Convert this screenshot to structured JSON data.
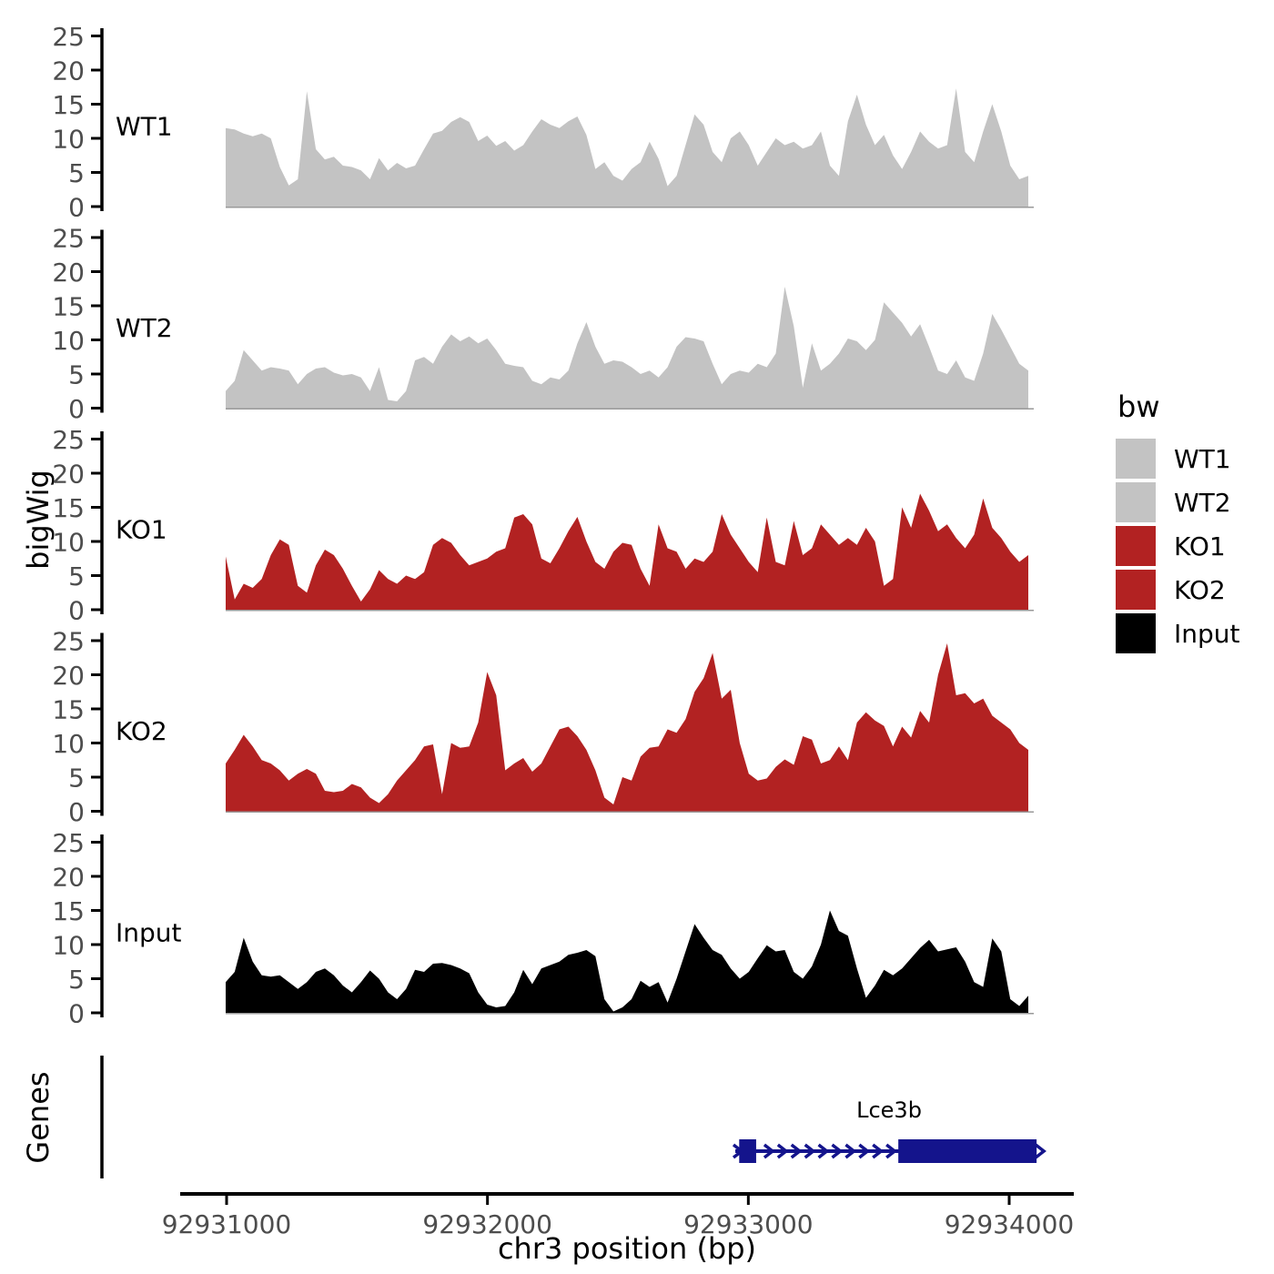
{
  "labels": {
    "y_axis": "bigWig",
    "genes_axis": "Genes",
    "x_axis": "chr3 position (bp)"
  },
  "legend": {
    "title": "bw",
    "items": [
      {
        "label": "WT1",
        "color": "#c3c3c3"
      },
      {
        "label": "WT2",
        "color": "#c3c3c3"
      },
      {
        "label": "KO1",
        "color": "#b22222"
      },
      {
        "label": "KO2",
        "color": "#b22222"
      },
      {
        "label": "Input",
        "color": "#000000"
      }
    ]
  },
  "colors": {
    "axis": "#000000",
    "tick_text": "#4d4d4d",
    "panel_baseline": "#999999",
    "gene": "#14148c"
  },
  "chart_data": {
    "type": "area",
    "title": "",
    "xlabel": "chr3 position (bp)",
    "ylabel": "bigWig",
    "legend_title": "bw",
    "legend_position": "right",
    "grid": false,
    "x_start": 92931000,
    "x_end": 92934070,
    "x_ticks": [
      92931000,
      92932000,
      92933000,
      92934000
    ],
    "x_tick_labels": [
      "92931000",
      "92932000",
      "92933000",
      "92934000"
    ],
    "ylim": [
      0,
      25
    ],
    "y_ticks": [
      0,
      5,
      10,
      15,
      20,
      25
    ],
    "panels": [
      {
        "name": "WT1",
        "color": "#c3c3c3",
        "values": [
          11.5,
          11.3,
          10.7,
          10.3,
          10.7,
          10.0,
          5.8,
          3.1,
          4.0,
          16.9,
          8.4,
          6.9,
          7.3,
          6.0,
          5.8,
          5.3,
          4.0,
          7.1,
          5.3,
          6.4,
          5.6,
          6.0,
          8.4,
          10.7,
          11.1,
          12.4,
          13.1,
          12.4,
          9.6,
          10.4,
          8.9,
          9.6,
          8.2,
          9.0,
          11.0,
          12.8,
          12.0,
          11.5,
          12.5,
          13.2,
          10.5,
          5.5,
          6.5,
          4.5,
          3.8,
          5.5,
          6.5,
          9.5,
          7.0,
          3.0,
          4.5,
          9.0,
          13.5,
          12.0,
          8.0,
          6.5,
          10.0,
          11.0,
          9.0,
          6.0,
          8.0,
          10.0,
          9.0,
          9.5,
          8.5,
          9.0,
          11.0,
          6.0,
          4.5,
          12.5,
          16.4,
          12.0,
          9.0,
          10.5,
          7.5,
          5.5,
          8.0,
          11.0,
          9.5,
          8.5,
          9.0,
          17.3,
          8.0,
          6.5,
          11.0,
          15.0,
          11.0,
          6.0,
          4.0,
          4.5
        ]
      },
      {
        "name": "WT2",
        "color": "#c3c3c3",
        "values": [
          2.5,
          4.0,
          8.5,
          7.0,
          5.5,
          6.0,
          5.8,
          5.5,
          3.5,
          5.0,
          5.8,
          6.0,
          5.2,
          4.8,
          5.0,
          4.5,
          2.5,
          6.0,
          1.2,
          1.0,
          2.5,
          7.0,
          7.5,
          6.5,
          9.0,
          10.8,
          9.8,
          10.5,
          9.5,
          10.2,
          8.5,
          6.5,
          6.2,
          6.0,
          4.0,
          3.5,
          4.5,
          4.2,
          5.5,
          9.5,
          12.6,
          9.0,
          6.5,
          7.0,
          6.8,
          6.0,
          5.0,
          5.5,
          4.5,
          6.0,
          9.0,
          10.4,
          10.2,
          9.8,
          6.5,
          3.5,
          5.0,
          5.5,
          5.2,
          6.5,
          6.0,
          8.0,
          17.8,
          12.0,
          3.0,
          9.5,
          5.5,
          6.5,
          8.0,
          10.2,
          9.8,
          8.5,
          10.0,
          15.5,
          14.0,
          12.5,
          10.5,
          12.3,
          9.0,
          5.5,
          5.0,
          7.0,
          4.5,
          4.0,
          8.0,
          13.8,
          11.5,
          9.0,
          6.5,
          5.5
        ]
      },
      {
        "name": "KO1",
        "color": "#b22222",
        "values": [
          7.8,
          1.5,
          3.8,
          3.2,
          4.5,
          8.0,
          10.3,
          9.5,
          3.5,
          2.5,
          6.5,
          8.8,
          8.0,
          6.0,
          3.5,
          1.2,
          3.0,
          5.8,
          4.5,
          3.8,
          5.0,
          4.5,
          5.5,
          9.5,
          10.5,
          9.8,
          8.0,
          6.5,
          7.0,
          7.5,
          8.5,
          9.0,
          13.5,
          14.0,
          12.5,
          7.5,
          6.8,
          9.0,
          11.5,
          13.6,
          10.0,
          7.0,
          6.0,
          8.5,
          9.8,
          9.5,
          6.0,
          3.5,
          12.5,
          9.0,
          8.5,
          6.0,
          7.5,
          7.0,
          8.5,
          14.0,
          11.0,
          9.0,
          7.0,
          5.5,
          13.5,
          7.0,
          6.5,
          13.0,
          8.0,
          9.0,
          12.5,
          11.0,
          9.5,
          10.5,
          9.5,
          12.0,
          10.0,
          3.5,
          4.5,
          15.0,
          12.0,
          17.0,
          14.5,
          11.5,
          12.5,
          10.5,
          9.0,
          11.0,
          16.3,
          12.0,
          10.5,
          8.5,
          7.0,
          8.0
        ]
      },
      {
        "name": "KO2",
        "color": "#b22222",
        "values": [
          7.0,
          9.0,
          11.2,
          9.5,
          7.5,
          7.0,
          6.0,
          4.5,
          5.5,
          6.2,
          5.5,
          3.0,
          2.8,
          3.0,
          4.0,
          3.5,
          2.0,
          1.2,
          2.5,
          4.5,
          6.0,
          7.5,
          9.5,
          9.8,
          2.5,
          10.0,
          9.3,
          9.5,
          13.0,
          20.4,
          17.0,
          6.0,
          7.0,
          7.8,
          5.8,
          7.0,
          9.5,
          12.0,
          12.4,
          11.0,
          9.0,
          6.0,
          2.0,
          1.0,
          5.0,
          4.5,
          8.0,
          9.3,
          9.5,
          12.0,
          11.5,
          13.5,
          17.5,
          19.5,
          23.2,
          16.5,
          17.8,
          10.0,
          5.5,
          4.5,
          4.8,
          6.5,
          7.6,
          6.8,
          11.0,
          10.5,
          7.0,
          7.5,
          9.5,
          7.5,
          13.0,
          14.5,
          13.3,
          12.5,
          9.5,
          12.4,
          10.8,
          14.7,
          13.0,
          20.0,
          24.6,
          17.0,
          17.3,
          15.8,
          16.5,
          14.0,
          13.0,
          12.0,
          10.0,
          9.0
        ]
      },
      {
        "name": "Input",
        "color": "#000000",
        "values": [
          4.5,
          6.0,
          11.0,
          7.5,
          5.5,
          5.3,
          5.5,
          4.5,
          3.5,
          4.5,
          6.0,
          6.5,
          5.5,
          4.0,
          3.0,
          4.5,
          6.2,
          5.0,
          3.0,
          2.0,
          3.5,
          6.3,
          6.0,
          7.2,
          7.3,
          7.0,
          6.5,
          5.8,
          3.0,
          1.2,
          0.8,
          1.0,
          3.0,
          6.3,
          4.2,
          6.5,
          7.0,
          7.5,
          8.5,
          8.8,
          9.2,
          8.3,
          2.0,
          0.2,
          0.8,
          2.0,
          4.7,
          3.8,
          4.5,
          1.5,
          5.0,
          9.0,
          13.0,
          11.0,
          9.2,
          8.5,
          6.5,
          5.0,
          6.0,
          8.0,
          9.9,
          9.0,
          9.2,
          6.0,
          5.0,
          6.8,
          10.0,
          15.0,
          12.0,
          11.3,
          6.5,
          2.2,
          4.0,
          6.3,
          5.5,
          6.5,
          8.0,
          9.5,
          10.7,
          9.0,
          9.3,
          9.6,
          7.5,
          4.5,
          3.8,
          10.9,
          9.0,
          2.0,
          1.0,
          2.5
        ]
      }
    ],
    "gene_track": {
      "axis_label": "Genes",
      "gene_label": "Lce3b",
      "strand": "+",
      "chrom": "chr3",
      "gene_start": 92932950,
      "gene_end": 92934105,
      "exons": [
        [
          92932965,
          92933030
        ],
        [
          92933575,
          92934105
        ]
      ],
      "intron_arrow_count": 10,
      "color": "#14148c"
    }
  }
}
